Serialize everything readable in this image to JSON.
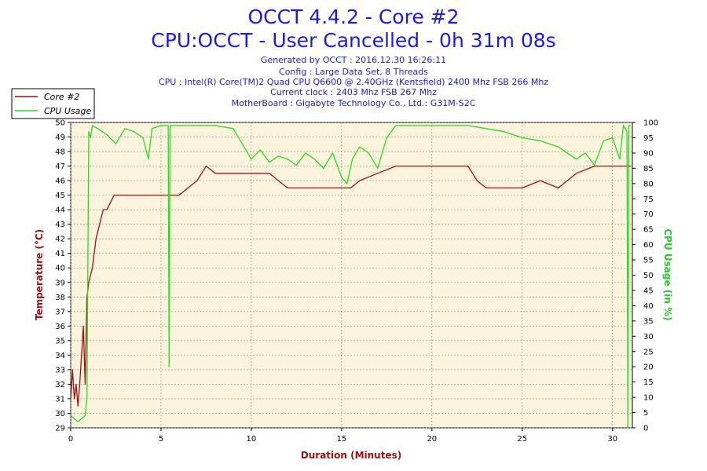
{
  "header": {
    "title_line1": "OCCT 4.4.2 - Core #2",
    "title_line2": "CPU:OCCT - User Cancelled - 0h 31m 08s",
    "generated": "Generated by OCCT : 2016.12.30 16:26:11",
    "config": "Config : Large Data Set, 8 Threads",
    "cpu": "CPU : Intel(R) Core(TM)2 Quad CPU Q6600 @ 2.40GHz (Kentsfield) 2400 Mhz FSB 266 Mhz",
    "clock": "Current clock : 2403 Mhz FSB 267 Mhz",
    "motherboard": "MotherBoard : Gigabyte Technology Co., Ltd.: G31M-S2C"
  },
  "colors": {
    "temperature": "#a01010",
    "cpu_usage": "#22dd22",
    "plot_background": "#fbf3dc",
    "grid": "#8a8a8a"
  },
  "chart_data": {
    "type": "line",
    "xlabel": "Duration (Minutes)",
    "ylabel_left": "Temperature (°C)",
    "ylabel_right": "CPU Usage (in %)",
    "xlim": [
      0,
      31.1
    ],
    "ylim_left": [
      29,
      50
    ],
    "ylim_right": [
      0,
      100
    ],
    "x_ticks": [
      0,
      5,
      10,
      15,
      20,
      25,
      30
    ],
    "y_ticks_left": [
      29,
      30,
      31,
      32,
      33,
      34,
      35,
      36,
      37,
      38,
      39,
      40,
      41,
      42,
      43,
      44,
      45,
      46,
      47,
      48,
      49,
      50
    ],
    "y_ticks_right": [
      0,
      5,
      10,
      15,
      20,
      25,
      30,
      35,
      40,
      45,
      50,
      55,
      60,
      65,
      70,
      75,
      80,
      85,
      90,
      95,
      100
    ],
    "grid": true,
    "legend_position": "top-left",
    "legend": [
      "Core #2",
      "CPU Usage"
    ],
    "series": [
      {
        "name": "Core #2",
        "axis": "left",
        "x": [
          0.0,
          0.1,
          0.2,
          0.3,
          0.4,
          0.5,
          0.6,
          0.7,
          0.8,
          0.9,
          1.0,
          1.2,
          1.4,
          1.6,
          1.8,
          2.0,
          2.2,
          2.4,
          2.6,
          2.8,
          3.0,
          3.5,
          4.0,
          4.5,
          5.0,
          5.5,
          6.0,
          6.5,
          7.0,
          7.5,
          8.0,
          9.0,
          10.0,
          11.0,
          11.5,
          12.0,
          13.0,
          14.0,
          15.0,
          15.5,
          16.0,
          17.0,
          18.0,
          19.0,
          20.0,
          21.0,
          22.0,
          22.5,
          23.0,
          24.0,
          25.0,
          26.0,
          27.0,
          27.5,
          28.0,
          29.0,
          29.5,
          30.0,
          31.0
        ],
        "y": [
          31,
          33,
          31,
          32,
          30.5,
          32,
          34,
          36,
          32,
          38,
          39,
          40,
          42,
          43,
          44,
          44,
          44.5,
          45,
          45,
          45,
          45,
          45,
          45,
          45,
          45,
          45,
          45,
          45.5,
          46,
          47,
          46.5,
          46.5,
          46.5,
          46.5,
          46,
          45.5,
          45.5,
          45.5,
          45.5,
          45.5,
          46,
          46.5,
          47,
          47,
          47,
          47,
          47,
          46,
          45.5,
          45.5,
          45.5,
          46,
          45.5,
          46,
          46.5,
          47,
          47,
          47,
          47
        ]
      },
      {
        "name": "CPU Usage",
        "axis": "right",
        "x": [
          0.0,
          0.2,
          0.4,
          0.6,
          0.8,
          0.9,
          1.0,
          1.1,
          1.2,
          1.5,
          2.0,
          2.5,
          3.0,
          3.5,
          4.0,
          4.3,
          4.5,
          5.0,
          5.4,
          5.45,
          5.5,
          6.0,
          7.0,
          8.0,
          9.0,
          9.5,
          10.0,
          10.5,
          11.0,
          11.5,
          12.0,
          12.5,
          13.0,
          13.5,
          14.0,
          14.5,
          15.0,
          15.3,
          15.6,
          16.0,
          16.5,
          17.0,
          17.5,
          18.0,
          19.0,
          20.0,
          21.0,
          22.0,
          23.0,
          24.0,
          25.0,
          26.0,
          26.5,
          27.0,
          27.5,
          28.0,
          28.5,
          29.0,
          29.5,
          30.0,
          30.4,
          30.6,
          30.8,
          30.85,
          30.9,
          31.0
        ],
        "y": [
          4,
          3,
          2,
          3,
          4,
          10,
          97,
          95,
          99,
          98,
          96,
          93,
          98,
          97,
          95,
          88,
          98,
          99,
          99,
          20,
          99,
          99,
          99,
          99,
          98,
          93,
          88,
          91,
          87,
          89,
          88,
          86,
          90,
          88,
          85,
          90,
          82,
          80,
          88,
          92,
          90,
          85,
          95,
          99,
          99,
          99,
          99,
          99,
          98,
          97,
          95,
          94,
          93,
          92,
          90,
          88,
          90,
          86,
          94,
          95,
          88,
          99,
          97,
          0,
          99,
          99
        ]
      }
    ]
  }
}
